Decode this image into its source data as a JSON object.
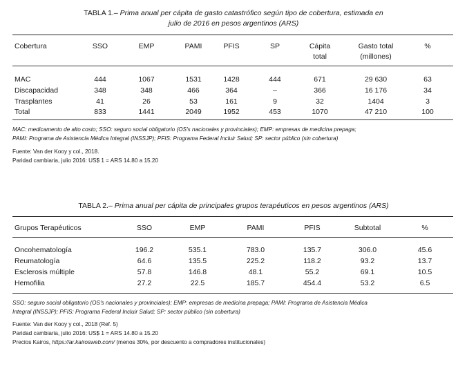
{
  "table1": {
    "label": "TABLA 1.–",
    "caption_line1": "Prima anual per cápita de gasto catastrófico según tipo de cobertura, estimada en",
    "caption_line2": "julio de 2016 en pesos argentinos (ARS)",
    "headers": {
      "cobertura": "Cobertura",
      "sso": "SSO",
      "emp": "EMP",
      "pami": "PAMI",
      "pfis": "PFIS",
      "sp": "SP",
      "capita_1": "Cápita",
      "capita_2": "total",
      "gasto_1": "Gasto total",
      "gasto_2": "(millones)",
      "pct": "%"
    },
    "rows": [
      {
        "cobertura": "MAC",
        "sso": "444",
        "emp": "1067",
        "pami": "1531",
        "pfis": "1428",
        "sp": "444",
        "capita": "671",
        "gasto": "29 630",
        "pct": "63"
      },
      {
        "cobertura": "Discapacidad",
        "sso": "348",
        "emp": "348",
        "pami": "466",
        "pfis": "364",
        "sp": "–",
        "capita": "366",
        "gasto": "16 176",
        "pct": "34"
      },
      {
        "cobertura": "Trasplantes",
        "sso": "41",
        "emp": "26",
        "pami": "53",
        "pfis": "161",
        "sp": "9",
        "capita": "32",
        "gasto": "1404",
        "pct": "3"
      },
      {
        "cobertura": "Total",
        "sso": "833",
        "emp": "1441",
        "pami": "2049",
        "pfis": "1952",
        "sp": "453",
        "capita": "1070",
        "gasto": "47 210",
        "pct": "100"
      }
    ],
    "abbrev_line1": "MAC: medicamento de alto costo; SSO: seguro social obligatorio (OS's nacionales y provinciales); EMP: empresas de medicina prepaga;",
    "abbrev_line2": "PAMI: Programa de Asistencia Médica Integral (INSSJP); PFIS: Programa Federal Incluir Salud; SP: sector público (sin cobertura)",
    "source": "Fuente: Van der Kooy y col., 2018.",
    "exchange": "Paridad cambiaria, julio 2016: US$ 1 = ARS 14.80 a 15.20"
  },
  "table2": {
    "label": "TABLA 2.–",
    "caption": "Prima anual per cápita de principales grupos terapéuticos en pesos argentinos (ARS)",
    "headers": {
      "grupo": "Grupos Terapéuticos",
      "sso": "SSO",
      "emp": "EMP",
      "pami": "PAMI",
      "pfis": "PFIS",
      "subtotal": "Subtotal",
      "pct": "%"
    },
    "rows": [
      {
        "grupo": "Oncohematología",
        "sso": "196.2",
        "emp": "535.1",
        "pami": "783.0",
        "pfis": "135.7",
        "subtotal": "306.0",
        "pct": "45.6"
      },
      {
        "grupo": "Reumatología",
        "sso": "64.6",
        "emp": "135.5",
        "pami": "225.2",
        "pfis": "118.2",
        "subtotal": "93.2",
        "pct": "13.7"
      },
      {
        "grupo": "Esclerosis múltiple",
        "sso": "57.8",
        "emp": "146.8",
        "pami": "48.1",
        "pfis": "55.2",
        "subtotal": "69.1",
        "pct": "10.5"
      },
      {
        "grupo": "Hemofilia",
        "sso": "27.2",
        "emp": "22.5",
        "pami": "185.7",
        "pfis": "454.4",
        "subtotal": "53.2",
        "pct": "6.5"
      }
    ],
    "abbrev_line1": "SSO: seguro social obligatorio (OS's nacionales y provinciales); EMP: empresas de medicina prepaga; PAMI: Programa de Asistencia Médica",
    "abbrev_line2": "Integral (INSSJP); PFIS: Programa Federal Incluir Salud; SP: sector público (sin cobertura)",
    "source": "Fuente: Van der Kooy y col., 2018 (Ref. 5)",
    "exchange": "Paridad cambiaria, julio 2016: US$ 1 = ARS 14.80 a 15.20",
    "prices_prefix": "Precios Kairos,",
    "prices_url": "https://ar.kairosweb.com/",
    "prices_suffix": "(menos 30%, por descuento a compradores institucionales)"
  }
}
